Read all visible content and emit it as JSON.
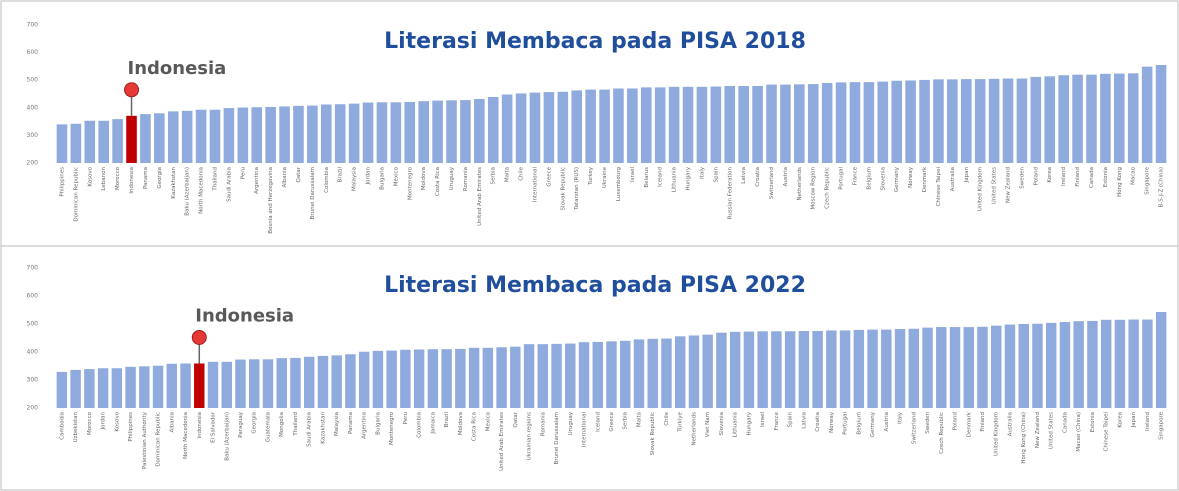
{
  "chart_data": [
    {
      "type": "bar",
      "title": "Literasi Membaca pada PISA 2018",
      "color": "#8faadc",
      "highlight_color": "#c00000",
      "annotation": "Indonesia",
      "grid": false,
      "ylim": [
        200,
        700
      ],
      "yticks": [
        200,
        300,
        400,
        500,
        600,
        700
      ],
      "categories": [
        "Philippines",
        "Dominican Republic",
        "Kosovo",
        "Lebanon",
        "Morocco",
        "Indonesia",
        "Panama",
        "Georgia",
        "Kazakhstan",
        "Baku (Azerbaijan)",
        "North Macedonia",
        "Thailand",
        "Saudi Arabia",
        "Peru",
        "Argentina",
        "Bosnia and Herzegovina",
        "Albania",
        "Qatar",
        "Brunei Darussalam",
        "Colombia",
        "Brazil",
        "Malaysia",
        "Jordan",
        "Bulgaria",
        "Mexico",
        "Montenegro",
        "Moldova",
        "Costa Rica",
        "Uruguay",
        "Romania",
        "United Arab Emirates",
        "Serbia",
        "Malta",
        "Chile",
        "International",
        "Greece",
        "Slovak Republic",
        "Tatarstan (RUS)",
        "Turkey",
        "Ukraine",
        "Luxembourg",
        "Israel",
        "Belarus",
        "Iceland",
        "Lithuania",
        "Hungary",
        "Italy",
        "Spain",
        "Russian Federation",
        "Latvia",
        "Croatia",
        "Switzerland",
        "Austria",
        "Netherlands",
        "Moscow Region",
        "Czech Republic",
        "Portugal",
        "France",
        "Belgium",
        "Slovenia",
        "Germany",
        "Norway",
        "Denmark",
        "Chinese Taipei",
        "Australia",
        "Japan",
        "United Kingdom",
        "United States",
        "New Zealand",
        "Sweden",
        "Poland",
        "Korea",
        "Ireland",
        "Finland",
        "Canada",
        "Estonia",
        "Hong Kong",
        "Macao",
        "Singapore",
        "B-S-J-Z (China)"
      ],
      "values": [
        340,
        342,
        353,
        353,
        359,
        371,
        377,
        380,
        387,
        389,
        393,
        393,
        399,
        401,
        402,
        403,
        405,
        407,
        408,
        412,
        413,
        415,
        419,
        420,
        420,
        421,
        424,
        426,
        427,
        428,
        432,
        439,
        448,
        452,
        455,
        457,
        458,
        463,
        466,
        466,
        470,
        470,
        474,
        474,
        476,
        476,
        476,
        477,
        479,
        479,
        479,
        484,
        484,
        485,
        486,
        490,
        492,
        493,
        493,
        495,
        498,
        499,
        501,
        503,
        503,
        504,
        504,
        505,
        506,
        506,
        512,
        514,
        518,
        520,
        520,
        523,
        524,
        525,
        549,
        555
      ]
    },
    {
      "type": "bar",
      "title": "Literasi Membaca pada PISA 2022",
      "color": "#8faadc",
      "highlight_color": "#c00000",
      "annotation": "Indonesia",
      "grid": false,
      "ylim": [
        200,
        700
      ],
      "yticks": [
        200,
        300,
        400,
        500,
        600,
        700
      ],
      "categories": [
        "Cambodia",
        "Uzbekistan",
        "Morocco",
        "Jordan",
        "Kosovo",
        "Philippines",
        "Palestinian Authority",
        "Dominican Republic",
        "Albania",
        "North Macedonia",
        "Indonesia",
        "El Salvador",
        "Baku (Azerbaijan)",
        "Paraguay",
        "Georgia",
        "Guatemala",
        "Mongolia",
        "Thailand",
        "Saudi Arabia",
        "Kazakhstan",
        "Malaysia",
        "Panama",
        "Argentina",
        "Bulgaria",
        "Montenegro",
        "Peru",
        "Colombia",
        "Jamaica",
        "Brazil",
        "Moldova",
        "Costa Rica",
        "Mexico",
        "United Arab Emirates",
        "Qatar",
        "Ukrainian regions",
        "Romania",
        "Brunei Darussalam",
        "Uruguay",
        "International",
        "Iceland",
        "Greece",
        "Serbia",
        "Malta",
        "Slovak Republic",
        "Chile",
        "Türkiye",
        "Netherlands",
        "Viet Nam",
        "Slovenia",
        "Lithuania",
        "Hungary",
        "Israel",
        "France",
        "Spain",
        "Latvia",
        "Croatia",
        "Norway",
        "Portugal",
        "Belgium",
        "Germany",
        "Austria",
        "Italy",
        "Switzerland",
        "Sweden",
        "Czech Republic",
        "Poland",
        "Denmark",
        "Finland",
        "United Kingdom",
        "Australia",
        "Hong Kong (China)",
        "New Zealand",
        "United States",
        "Canada",
        "Macao (China)",
        "Estonia",
        "Chinese Taipei",
        "Korea",
        "Japan",
        "Ireland",
        "Singapore"
      ],
      "values": [
        329,
        336,
        339,
        342,
        342,
        347,
        349,
        351,
        358,
        359,
        359,
        365,
        365,
        373,
        374,
        374,
        378,
        379,
        383,
        386,
        388,
        392,
        401,
        404,
        405,
        408,
        409,
        410,
        410,
        411,
        415,
        415,
        417,
        419,
        428,
        428,
        429,
        430,
        435,
        436,
        438,
        440,
        445,
        447,
        448,
        456,
        459,
        462,
        469,
        472,
        473,
        474,
        474,
        474,
        475,
        475,
        477,
        477,
        479,
        480,
        480,
        482,
        483,
        487,
        489,
        489,
        489,
        490,
        494,
        498,
        500,
        501,
        504,
        507,
        510,
        511,
        515,
        515,
        516,
        516,
        543
      ]
    }
  ]
}
